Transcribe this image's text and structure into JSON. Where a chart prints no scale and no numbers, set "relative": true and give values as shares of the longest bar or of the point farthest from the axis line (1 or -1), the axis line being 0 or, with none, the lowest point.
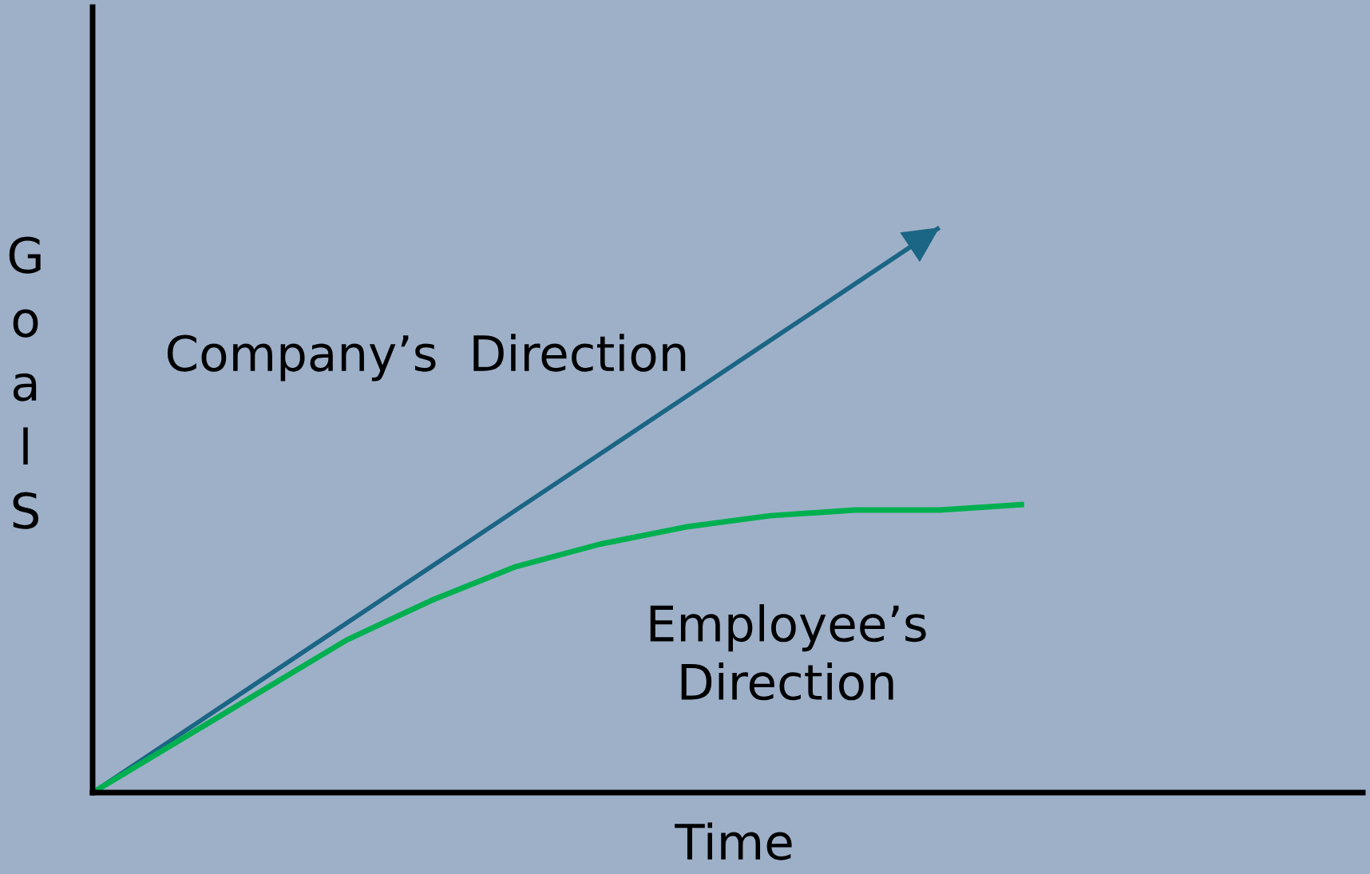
{
  "chart_data": {
    "type": "line",
    "relative": true,
    "xlabel": "Time",
    "ylabel": "GoalS",
    "categories": [
      null,
      null,
      null,
      null,
      null,
      null,
      null,
      null,
      null,
      null,
      null,
      null,
      null,
      null,
      null,
      null
    ],
    "series": [
      {
        "name": "Company’s  Direction",
        "color": "#1b6585",
        "values": [
          0,
          0.1,
          0.2,
          0.3,
          0.4,
          0.5,
          0.6,
          0.7,
          0.8,
          0.9,
          1,
          null,
          null,
          null,
          null,
          null
        ]
      },
      {
        "name": "Employee’s\nDirection",
        "color": "#00b050",
        "values": [
          0,
          0.09,
          0.18,
          0.27,
          0.34,
          0.4,
          0.44,
          0.47,
          0.49,
          0.5,
          0.5,
          0.51,
          null,
          null,
          null,
          null
        ]
      }
    ]
  }
}
